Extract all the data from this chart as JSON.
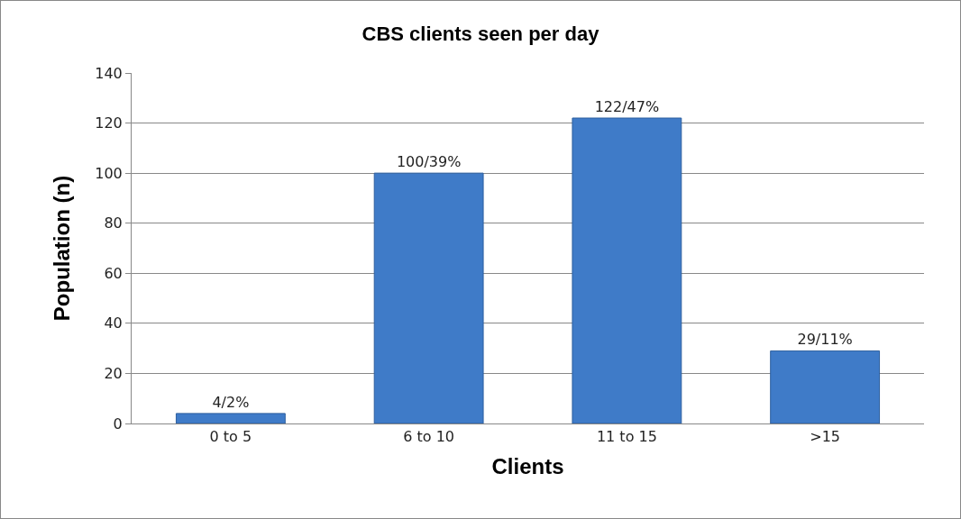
{
  "chart_data": {
    "type": "bar",
    "title": "CBS clients seen per day",
    "xlabel": "Clients",
    "ylabel": "Population (n)",
    "categories": [
      "0 to 5",
      "6 to 10",
      "11 to 15",
      ">15"
    ],
    "values": [
      4,
      100,
      122,
      29
    ],
    "value_labels": [
      "4/2%",
      "100/39%",
      "122/47%",
      "29/11%"
    ],
    "color": "#3f7bc8",
    "ylim": [
      0,
      140
    ],
    "yticks": [
      0,
      20,
      40,
      60,
      80,
      100,
      120,
      140
    ],
    "grid": "y"
  }
}
